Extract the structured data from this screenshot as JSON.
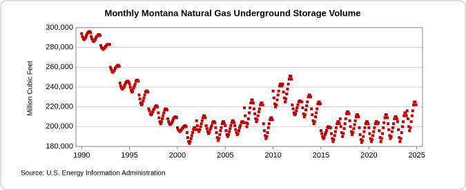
{
  "chart_data": {
    "type": "scatter",
    "title": "Monthly Montana Natural Gas Underground Storage Volume",
    "y_label": "Million Cubic Feet",
    "source": "Source: U.S. Energy Information Administration",
    "color": "#c00000",
    "grid": true,
    "xlim": [
      1989.4,
      2025.6
    ],
    "xticks": [
      1990,
      1995,
      2000,
      2005,
      2010,
      2015,
      2020,
      2025
    ],
    "ylim": [
      180000,
      300000
    ],
    "yticks": [
      {
        "value": 180000,
        "label": "180,000"
      },
      {
        "value": 200000,
        "label": "200,000"
      },
      {
        "value": 220000,
        "label": "220,000"
      },
      {
        "value": 240000,
        "label": "240,000"
      },
      {
        "value": 260000,
        "label": "260,000"
      },
      {
        "value": 280000,
        "label": "280,000"
      },
      {
        "value": 300000,
        "label": "300,000"
      }
    ],
    "x": [
      1990,
      1990.08,
      1990.17,
      1990.25,
      1990.33,
      1990.42,
      1990.5,
      1990.58,
      1990.67,
      1990.75,
      1990.83,
      1990.92,
      1991,
      1991.08,
      1991.17,
      1991.25,
      1991.33,
      1991.42,
      1991.5,
      1991.58,
      1991.67,
      1991.75,
      1991.83,
      1991.92,
      1992,
      1992.08,
      1992.17,
      1992.25,
      1992.33,
      1992.42,
      1992.5,
      1992.58,
      1992.67,
      1992.75,
      1992.83,
      1992.92,
      1993,
      1993.08,
      1993.17,
      1993.25,
      1993.33,
      1993.42,
      1993.5,
      1993.58,
      1993.67,
      1993.75,
      1993.83,
      1993.92,
      1994,
      1994.08,
      1994.17,
      1994.25,
      1994.33,
      1994.42,
      1994.5,
      1994.58,
      1994.67,
      1994.75,
      1994.83,
      1994.92,
      1995,
      1995.08,
      1995.17,
      1995.25,
      1995.33,
      1995.42,
      1995.5,
      1995.58,
      1995.67,
      1995.75,
      1995.83,
      1995.92,
      1996,
      1996.08,
      1996.17,
      1996.25,
      1996.33,
      1996.42,
      1996.5,
      1996.58,
      1996.67,
      1996.75,
      1996.83,
      1996.92,
      1997,
      1997.08,
      1997.17,
      1997.25,
      1997.33,
      1997.42,
      1997.5,
      1997.58,
      1997.67,
      1997.75,
      1997.83,
      1997.92,
      1998,
      1998.08,
      1998.17,
      1998.25,
      1998.33,
      1998.42,
      1998.5,
      1998.58,
      1998.67,
      1998.75,
      1998.83,
      1998.92,
      1999,
      1999.08,
      1999.17,
      1999.25,
      1999.33,
      1999.42,
      1999.5,
      1999.58,
      1999.67,
      1999.75,
      1999.83,
      1999.92,
      2000,
      2000.08,
      2000.17,
      2000.25,
      2000.33,
      2000.42,
      2000.5,
      2000.58,
      2000.67,
      2000.75,
      2000.83,
      2000.92,
      2001,
      2001.08,
      2001.17,
      2001.25,
      2001.33,
      2001.42,
      2001.5,
      2001.58,
      2001.67,
      2001.75,
      2001.83,
      2001.92,
      2002,
      2002.08,
      2002.17,
      2002.25,
      2002.33,
      2002.42,
      2002.5,
      2002.58,
      2002.67,
      2002.75,
      2002.83,
      2002.92,
      2003,
      2003.08,
      2003.17,
      2003.25,
      2003.33,
      2003.42,
      2003.5,
      2003.58,
      2003.67,
      2003.75,
      2003.83,
      2003.92,
      2004,
      2004.08,
      2004.17,
      2004.25,
      2004.33,
      2004.42,
      2004.5,
      2004.58,
      2004.67,
      2004.75,
      2004.83,
      2004.92,
      2005,
      2005.08,
      2005.17,
      2005.25,
      2005.33,
      2005.42,
      2005.5,
      2005.58,
      2005.67,
      2005.75,
      2005.83,
      2005.92,
      2006,
      2006.08,
      2006.17,
      2006.25,
      2006.33,
      2006.42,
      2006.5,
      2006.58,
      2006.67,
      2006.75,
      2006.83,
      2006.92,
      2007,
      2007.08,
      2007.17,
      2007.25,
      2007.33,
      2007.42,
      2007.5,
      2007.58,
      2007.67,
      2007.75,
      2007.83,
      2007.92,
      2008,
      2008.08,
      2008.17,
      2008.25,
      2008.33,
      2008.42,
      2008.5,
      2008.58,
      2008.67,
      2008.75,
      2008.83,
      2008.92,
      2009,
      2009.08,
      2009.17,
      2009.25,
      2009.33,
      2009.42,
      2009.5,
      2009.58,
      2009.67,
      2009.75,
      2009.83,
      2009.92,
      2010,
      2010.08,
      2010.17,
      2010.25,
      2010.33,
      2010.42,
      2010.5,
      2010.58,
      2010.67,
      2010.75,
      2010.83,
      2010.92,
      2011,
      2011.08,
      2011.17,
      2011.25,
      2011.33,
      2011.42,
      2011.5,
      2011.58,
      2011.67,
      2011.75,
      2011.83,
      2011.92,
      2012,
      2012.08,
      2012.17,
      2012.25,
      2012.33,
      2012.42,
      2012.5,
      2012.58,
      2012.67,
      2012.75,
      2012.83,
      2012.92,
      2013,
      2013.08,
      2013.17,
      2013.25,
      2013.33,
      2013.42,
      2013.5,
      2013.58,
      2013.67,
      2013.75,
      2013.83,
      2013.92,
      2014,
      2014.08,
      2014.17,
      2014.25,
      2014.33,
      2014.42,
      2014.5,
      2014.58,
      2014.67,
      2014.75,
      2014.83,
      2014.92,
      2015,
      2015.08,
      2015.17,
      2015.25,
      2015.33,
      2015.42,
      2015.5,
      2015.58,
      2015.67,
      2015.75,
      2015.83,
      2015.92,
      2016,
      2016.08,
      2016.17,
      2016.25,
      2016.33,
      2016.42,
      2016.5,
      2016.58,
      2016.67,
      2016.75,
      2016.83,
      2016.92,
      2017,
      2017.08,
      2017.17,
      2017.25,
      2017.33,
      2017.42,
      2017.5,
      2017.58,
      2017.67,
      2017.75,
      2017.83,
      2017.92,
      2018,
      2018.08,
      2018.17,
      2018.25,
      2018.33,
      2018.42,
      2018.5,
      2018.58,
      2018.67,
      2018.75,
      2018.83,
      2018.92,
      2019,
      2019.08,
      2019.17,
      2019.25,
      2019.33,
      2019.42,
      2019.5,
      2019.58,
      2019.67,
      2019.75,
      2019.83,
      2019.92,
      2020,
      2020.08,
      2020.17,
      2020.25,
      2020.33,
      2020.42,
      2020.5,
      2020.58,
      2020.67,
      2020.75,
      2020.83,
      2020.92,
      2021,
      2021.08,
      2021.17,
      2021.25,
      2021.33,
      2021.42,
      2021.5,
      2021.58,
      2021.67,
      2021.75,
      2021.83,
      2021.92,
      2022,
      2022.08,
      2022.17,
      2022.25,
      2022.33,
      2022.42,
      2022.5,
      2022.58,
      2022.67,
      2022.75,
      2022.83,
      2022.92,
      2023,
      2023.08,
      2023.17,
      2023.25,
      2023.33,
      2023.42,
      2023.5,
      2023.58,
      2023.67,
      2023.75,
      2023.83,
      2023.92,
      2024,
      2024.08,
      2024.17,
      2024.25,
      2024.33,
      2024.42,
      2024.5,
      2024.58,
      2024.67,
      2024.75,
      2024.83,
      2024.92
    ],
    "values": [
      294000,
      291000,
      289000,
      288000,
      289000,
      290000,
      292000,
      294000,
      295000,
      296000,
      296000,
      295000,
      291000,
      289000,
      287000,
      286000,
      287000,
      288000,
      290000,
      291000,
      292000,
      293000,
      293000,
      292000,
      282000,
      280000,
      279000,
      278000,
      279000,
      280000,
      281000,
      282000,
      283000,
      283000,
      283000,
      283000,
      260000,
      258000,
      256000,
      255000,
      256000,
      257000,
      259000,
      260000,
      261000,
      262000,
      262000,
      261000,
      244000,
      241000,
      239000,
      238000,
      239000,
      240000,
      242000,
      244000,
      245000,
      246000,
      246000,
      245000,
      243000,
      240000,
      237000,
      235000,
      236000,
      239000,
      241000,
      243000,
      246000,
      247000,
      247000,
      246000,
      232000,
      228000,
      224000,
      222000,
      223000,
      226000,
      229000,
      232000,
      235000,
      236000,
      236000,
      235000,
      218000,
      216000,
      213000,
      212000,
      213000,
      215000,
      217000,
      218000,
      220000,
      221000,
      221000,
      220000,
      214000,
      209000,
      205000,
      203000,
      205000,
      208000,
      211000,
      214000,
      217000,
      218000,
      218000,
      217000,
      208000,
      205000,
      203000,
      202000,
      203000,
      204000,
      206000,
      208000,
      209000,
      210000,
      210000,
      209000,
      199000,
      197000,
      196000,
      195000,
      196000,
      197000,
      198000,
      199000,
      200000,
      201000,
      201000,
      200000,
      194000,
      189000,
      185000,
      183000,
      185000,
      188000,
      191000,
      194000,
      197000,
      199000,
      199000,
      197000,
      206000,
      201000,
      197000,
      195000,
      197000,
      200000,
      203000,
      206000,
      209000,
      211000,
      211000,
      209000,
      201000,
      198000,
      195000,
      193000,
      194000,
      197000,
      199000,
      201000,
      204000,
      205000,
      205000,
      204000,
      199000,
      194000,
      189000,
      186000,
      188000,
      192000,
      196000,
      199000,
      203000,
      205000,
      205000,
      203000,
      201000,
      196000,
      192000,
      190000,
      192000,
      195000,
      198000,
      201000,
      204000,
      206000,
      206000,
      204000,
      201000,
      197000,
      194000,
      192000,
      193000,
      196000,
      199000,
      201000,
      204000,
      205000,
      205000,
      204000,
      219000,
      211000,
      204000,
      200000,
      203000,
      208000,
      214000,
      219000,
      224000,
      227000,
      227000,
      224000,
      218000,
      213000,
      208000,
      205000,
      207000,
      211000,
      215000,
      218000,
      222000,
      224000,
      224000,
      222000,
      203000,
      196000,
      191000,
      188000,
      190000,
      194000,
      199000,
      203000,
      207000,
      209000,
      209000,
      207000,
      236000,
      229000,
      223000,
      220000,
      222000,
      227000,
      232000,
      236000,
      241000,
      243000,
      243000,
      241000,
      243000,
      235000,
      229000,
      225000,
      228000,
      233000,
      238000,
      243000,
      248000,
      251000,
      251000,
      248000,
      222000,
      218000,
      214000,
      212000,
      213000,
      216000,
      219000,
      222000,
      225000,
      226000,
      226000,
      225000,
      225000,
      219000,
      213000,
      210000,
      212000,
      217000,
      221000,
      225000,
      230000,
      232000,
      232000,
      230000,
      218000,
      212000,
      206000,
      203000,
      205000,
      210000,
      214000,
      218000,
      223000,
      225000,
      225000,
      223000,
      196000,
      193000,
      190000,
      188000,
      189000,
      192000,
      194000,
      196000,
      199000,
      200000,
      200000,
      199000,
      199000,
      193000,
      188000,
      185000,
      187000,
      191000,
      195000,
      199000,
      203000,
      205000,
      205000,
      203000,
      208000,
      200000,
      194000,
      190000,
      193000,
      198000,
      203000,
      208000,
      213000,
      215000,
      215000,
      213000,
      206000,
      200000,
      195000,
      192000,
      194000,
      198000,
      202000,
      206000,
      210000,
      212000,
      212000,
      210000,
      199000,
      192000,
      187000,
      184000,
      186000,
      190000,
      195000,
      199000,
      203000,
      205000,
      205000,
      203000,
      199000,
      193000,
      188000,
      185000,
      187000,
      191000,
      195000,
      199000,
      203000,
      205000,
      205000,
      203000,
      204000,
      196000,
      189000,
      185000,
      188000,
      193000,
      199000,
      204000,
      209000,
      212000,
      212000,
      209000,
      203000,
      197000,
      191000,
      188000,
      190000,
      195000,
      199000,
      203000,
      208000,
      210000,
      210000,
      208000,
      205000,
      197000,
      189000,
      185000,
      188000,
      194000,
      200000,
      205000,
      211000,
      214000,
      214000,
      211000,
      216000,
      208000,
      200000,
      196000,
      199000,
      205000,
      211000,
      216000,
      222000,
      225000,
      225000,
      222000
    ]
  }
}
